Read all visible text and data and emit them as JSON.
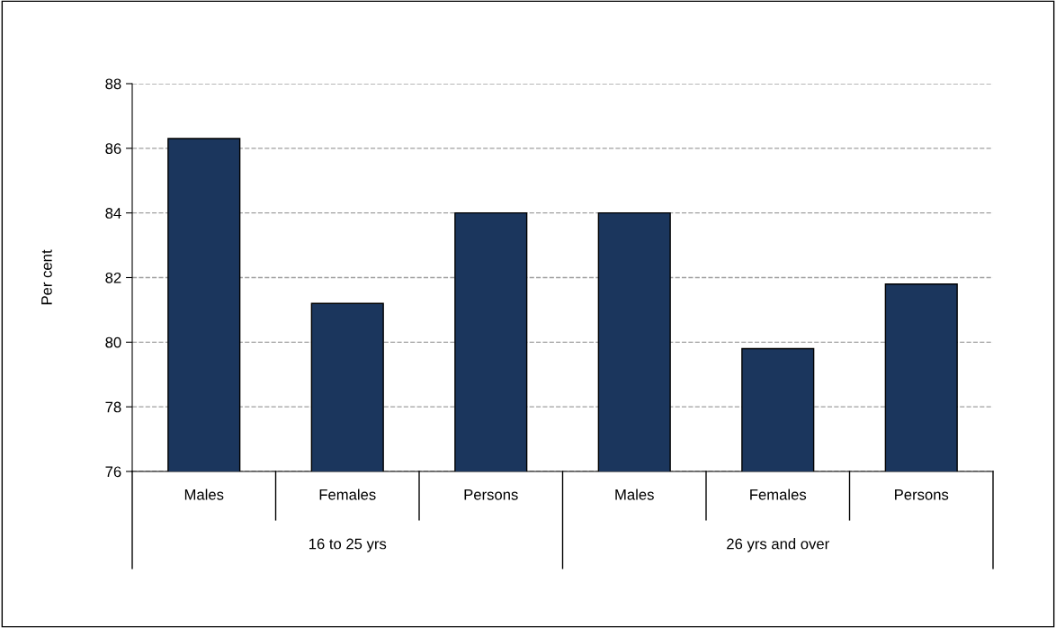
{
  "chart_data": {
    "type": "bar",
    "ylabel": "Per cent",
    "categories": [
      "Males",
      "Females",
      "Persons",
      "Males",
      "Females",
      "Persons"
    ],
    "values": [
      86.3,
      81.2,
      84.0,
      84.0,
      79.8,
      81.8
    ],
    "color": "#1b365d",
    "ylim": [
      76,
      88
    ],
    "yticks": [
      76,
      78,
      80,
      82,
      84,
      86,
      88
    ],
    "grid": "y",
    "line_style": "dashed",
    "annotations": [
      "16 to 25 yrs",
      "26 yrs and over"
    ]
  }
}
